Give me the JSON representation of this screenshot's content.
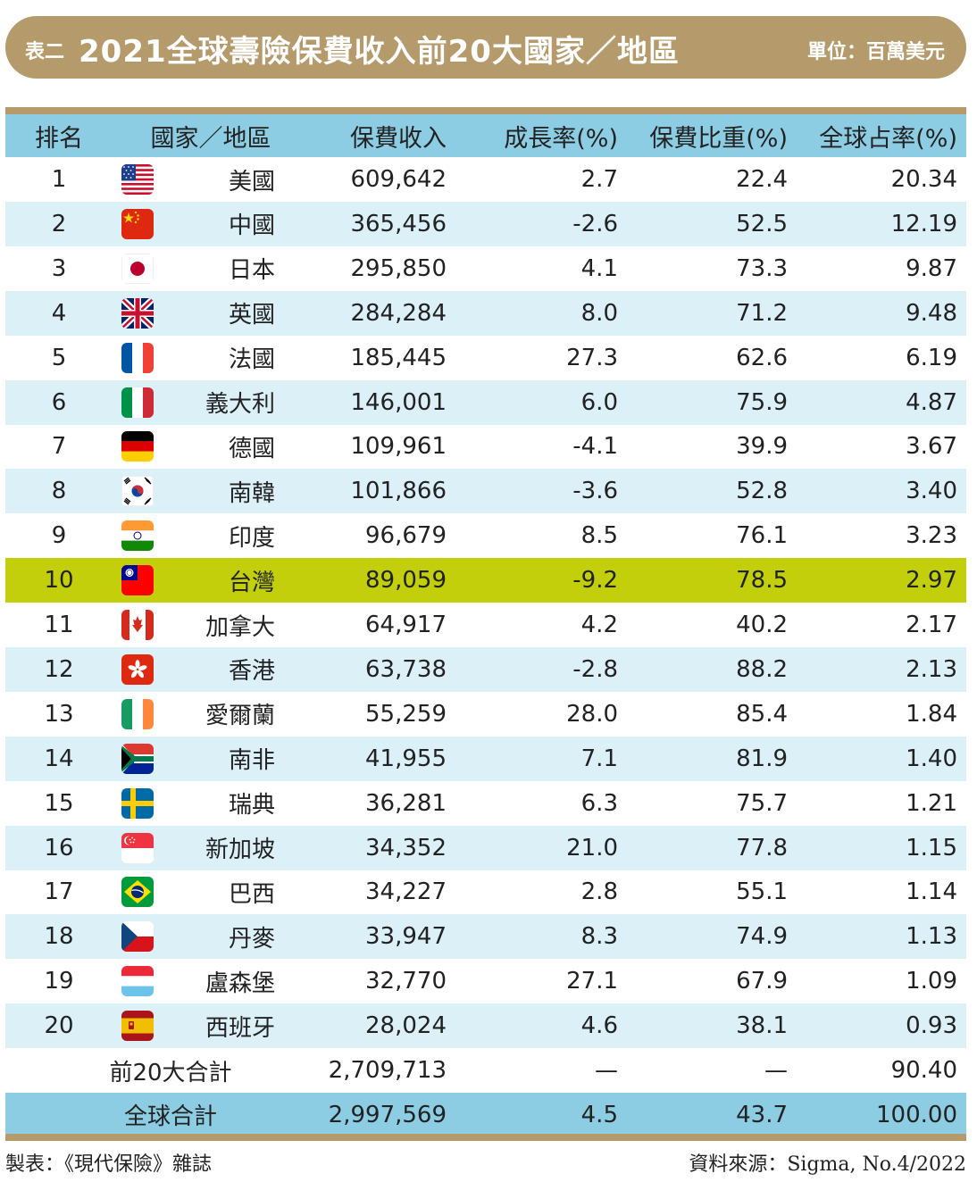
{
  "banner": {
    "tag": "表二",
    "title": "2021全球壽險保費收入前20大國家／地區",
    "unit": "單位：百萬美元"
  },
  "headers": {
    "rank": "排名",
    "name": "國家／地區",
    "premium": "保費收入",
    "growth": "成長率(%)",
    "ratio": "保費比重(%)",
    "share": "全球占率(%)"
  },
  "rows": [
    {
      "rank": "1",
      "name": "美國",
      "premium": "609,642",
      "growth": "2.7",
      "ratio": "22.4",
      "share": "20.34",
      "flag": "us-flag-icon"
    },
    {
      "rank": "2",
      "name": "中國",
      "premium": "365,456",
      "growth": "-2.6",
      "ratio": "52.5",
      "share": "12.19",
      "flag": "china-flag-icon"
    },
    {
      "rank": "3",
      "name": "日本",
      "premium": "295,850",
      "growth": "4.1",
      "ratio": "73.3",
      "share": "9.87",
      "flag": "japan-flag-icon"
    },
    {
      "rank": "4",
      "name": "英國",
      "premium": "284,284",
      "growth": "8.0",
      "ratio": "71.2",
      "share": "9.48",
      "flag": "uk-flag-icon"
    },
    {
      "rank": "5",
      "name": "法國",
      "premium": "185,445",
      "growth": "27.3",
      "ratio": "62.6",
      "share": "6.19",
      "flag": "france-flag-icon"
    },
    {
      "rank": "6",
      "name": "義大利",
      "premium": "146,001",
      "growth": "6.0",
      "ratio": "75.9",
      "share": "4.87",
      "flag": "italy-flag-icon"
    },
    {
      "rank": "7",
      "name": "德國",
      "premium": "109,961",
      "growth": "-4.1",
      "ratio": "39.9",
      "share": "3.67",
      "flag": "germany-flag-icon"
    },
    {
      "rank": "8",
      "name": "南韓",
      "premium": "101,866",
      "growth": "-3.6",
      "ratio": "52.8",
      "share": "3.40",
      "flag": "korea-flag-icon"
    },
    {
      "rank": "9",
      "name": "印度",
      "premium": "96,679",
      "growth": "8.5",
      "ratio": "76.1",
      "share": "3.23",
      "flag": "india-flag-icon"
    },
    {
      "rank": "10",
      "name": "台灣",
      "premium": "89,059",
      "growth": "-9.2",
      "ratio": "78.5",
      "share": "2.97",
      "flag": "taiwan-flag-icon"
    },
    {
      "rank": "11",
      "name": "加拿大",
      "premium": "64,917",
      "growth": "4.2",
      "ratio": "40.2",
      "share": "2.17",
      "flag": "canada-flag-icon"
    },
    {
      "rank": "12",
      "name": "香港",
      "premium": "63,738",
      "growth": "-2.8",
      "ratio": "88.2",
      "share": "2.13",
      "flag": "hongkong-flag-icon"
    },
    {
      "rank": "13",
      "name": "愛爾蘭",
      "premium": "55,259",
      "growth": "28.0",
      "ratio": "85.4",
      "share": "1.84",
      "flag": "ireland-flag-icon"
    },
    {
      "rank": "14",
      "name": "南非",
      "premium": "41,955",
      "growth": "7.1",
      "ratio": "81.9",
      "share": "1.40",
      "flag": "south-africa-flag-icon"
    },
    {
      "rank": "15",
      "name": "瑞典",
      "premium": "36,281",
      "growth": "6.3",
      "ratio": "75.7",
      "share": "1.21",
      "flag": "sweden-flag-icon"
    },
    {
      "rank": "16",
      "name": "新加坡",
      "premium": "34,352",
      "growth": "21.0",
      "ratio": "77.8",
      "share": "1.15",
      "flag": "singapore-flag-icon"
    },
    {
      "rank": "17",
      "name": "巴西",
      "premium": "34,227",
      "growth": "2.8",
      "ratio": "55.1",
      "share": "1.14",
      "flag": "brazil-flag-icon"
    },
    {
      "rank": "18",
      "name": "丹麥",
      "premium": "33,947",
      "growth": "8.3",
      "ratio": "74.9",
      "share": "1.13",
      "flag": "czech-flag-icon"
    },
    {
      "rank": "19",
      "name": "盧森堡",
      "premium": "32,770",
      "growth": "27.1",
      "ratio": "67.9",
      "share": "1.09",
      "flag": "luxembourg-flag-icon"
    },
    {
      "rank": "20",
      "name": "西班牙",
      "premium": "28,024",
      "growth": "4.6",
      "ratio": "38.1",
      "share": "0.93",
      "flag": "spain-flag-icon"
    }
  ],
  "totals": [
    {
      "label": "前20大合計",
      "premium": "2,709,713",
      "growth": "—",
      "ratio": "—",
      "share": "90.40"
    },
    {
      "label": "全球合計",
      "premium": "2,997,569",
      "growth": "4.5",
      "ratio": "43.7",
      "share": "100.00"
    }
  ],
  "footer": {
    "left": "製表：《現代保險》雜誌",
    "right": "資料來源：Sigma, No.4/2022"
  },
  "colors": {
    "accent": "#b59a6b",
    "header": "#8ccde3",
    "stripe": "#dcf0f8",
    "highlight": "#c2cf0a"
  }
}
